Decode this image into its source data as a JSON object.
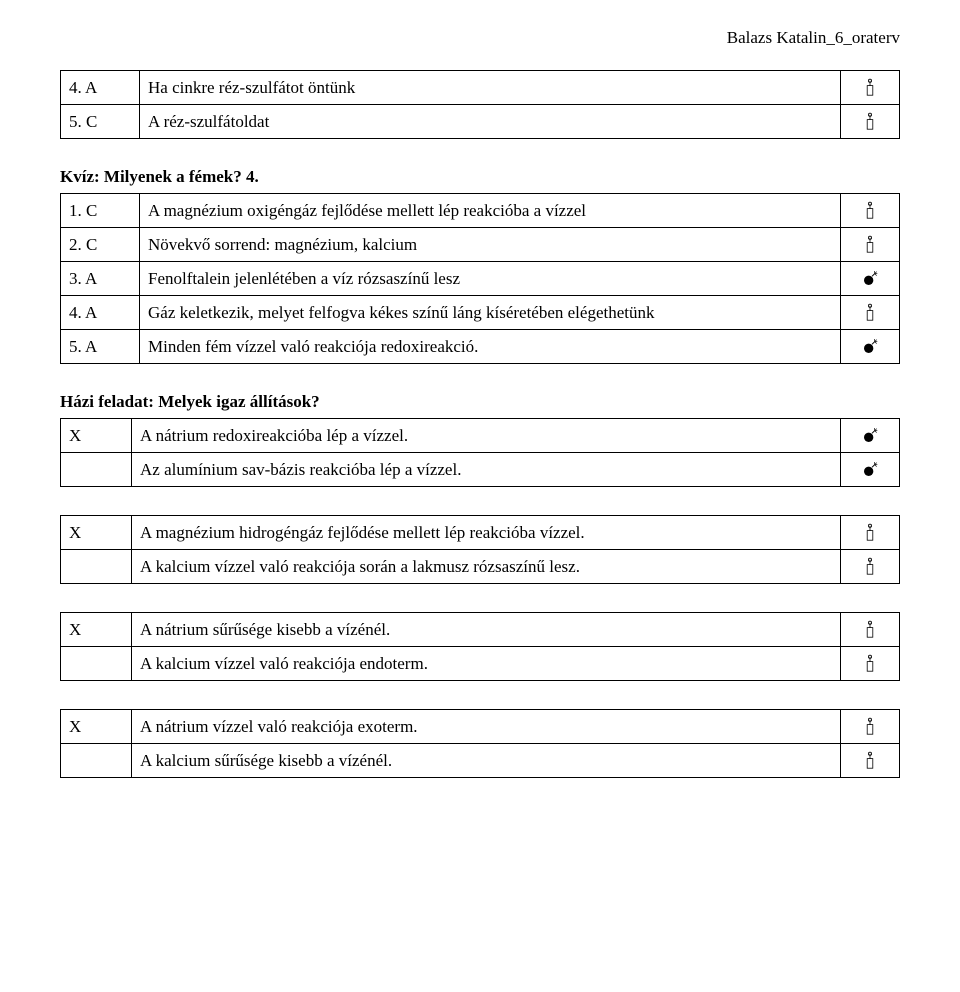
{
  "header": {
    "file_title": "Balazs Katalin_6_oraterv"
  },
  "icons": {
    "pencil": "✎",
    "bomb": "✹"
  },
  "table1": {
    "rows": [
      {
        "num": "4. A",
        "text": "Ha cinkre réz-szulfátot öntünk",
        "icon": "pencil"
      },
      {
        "num": "5. C",
        "text": "A réz-szulfátoldat",
        "icon": "pencil"
      }
    ]
  },
  "heading2": "Kvíz: Milyenek a fémek? 4.",
  "table2": {
    "rows": [
      {
        "num": "1. C",
        "text": "A magnézium oxigéngáz fejlődése mellett lép reakcióba a vízzel",
        "icon": "pencil"
      },
      {
        "num": "2. C",
        "text": "Növekvő sorrend: magnézium, kalcium",
        "icon": "pencil"
      },
      {
        "num": "3. A",
        "text": "Fenolftalein jelenlétében a víz rózsaszínű lesz",
        "icon": "bomb"
      },
      {
        "num": "4. A",
        "text": "Gáz keletkezik, melyet felfogva kékes színű láng kíséretében elégethetünk",
        "icon": "pencil"
      },
      {
        "num": "5. A",
        "text": "Minden fém vízzel való reakciója redoxireakció.",
        "icon": "bomb"
      }
    ]
  },
  "heading3": "Házi feladat: Melyek igaz állítások?",
  "table3": {
    "rows": [
      {
        "mark": "X",
        "text": "A nátrium redoxireakcióba lép a vízzel.",
        "icon": "bomb"
      },
      {
        "mark": "",
        "text": "Az alumínium sav-bázis reakcióba lép a vízzel.",
        "icon": "bomb"
      }
    ]
  },
  "table4": {
    "rows": [
      {
        "mark": "X",
        "text": "A magnézium hidrogéngáz fejlődése mellett lép reakcióba vízzel.",
        "icon": "pencil"
      },
      {
        "mark": "",
        "text": "A kalcium vízzel való reakciója során a lakmusz rózsaszínű lesz.",
        "icon": "pencil"
      }
    ]
  },
  "table5": {
    "rows": [
      {
        "mark": "X",
        "text": "A nátrium sűrűsége kisebb a vízénél.",
        "icon": "pencil"
      },
      {
        "mark": "",
        "text": "A kalcium vízzel való reakciója endoterm.",
        "icon": "pencil"
      }
    ]
  },
  "table6": {
    "rows": [
      {
        "mark": "X",
        "text": "A nátrium vízzel való reakciója exoterm.",
        "icon": "pencil"
      },
      {
        "mark": "",
        "text": "A kalcium sűrűsége kisebb a vízénél.",
        "icon": "pencil"
      }
    ]
  }
}
